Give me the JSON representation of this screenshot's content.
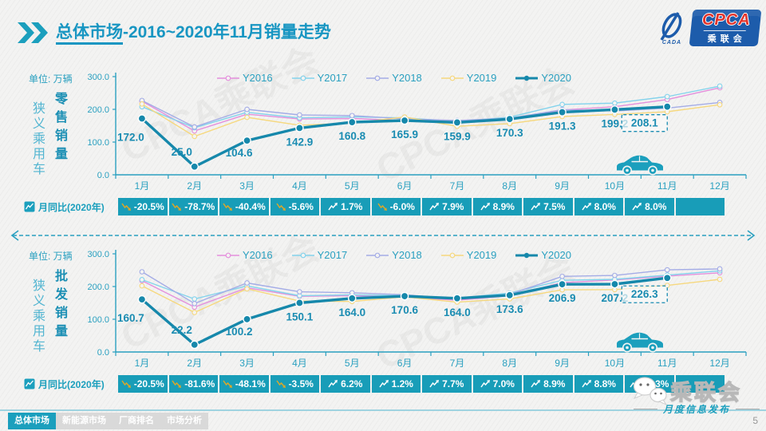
{
  "header": {
    "title_strong": "总体市场",
    "title_rest": "-2016~2020年11月销量走势",
    "logo": {
      "org_abbr": "CPCA",
      "org_cn": "乘联会",
      "swoosh_text": "CADA"
    }
  },
  "watermark_text": "CPCA乘联会",
  "charts": [
    {
      "unit_label": "单位: 万辆",
      "category_label": "狭义乘用车",
      "metric_label": "零售销量",
      "yoy_label": "月同比(2020年)"
    },
    {
      "unit_label": "单位: 万辆",
      "category_label": "狭义乘用车",
      "metric_label": "批发销量",
      "yoy_label": "月同比(2020年)"
    }
  ],
  "chart_data": [
    {
      "type": "line",
      "title": "狭义乘用车零售销量",
      "unit": "万辆",
      "categories": [
        "1月",
        "2月",
        "3月",
        "4月",
        "5月",
        "6月",
        "7月",
        "8月",
        "9月",
        "10月",
        "11月",
        "12月"
      ],
      "ylim": [
        0,
        300
      ],
      "yticks": [
        "300.0",
        "200.0",
        "100.0",
        "0.0"
      ],
      "legend_position": "top",
      "series": [
        {
          "name": "Y2016",
          "color": "#e490dc",
          "values": [
            225,
            134,
            185,
            170.5,
            172,
            166,
            158,
            170,
            198,
            208,
            230,
            266
          ]
        },
        {
          "name": "Y2017",
          "color": "#84d3ec",
          "values": [
            208,
            144,
            191,
            174,
            177,
            174,
            163,
            176,
            215,
            219,
            239,
            271
          ]
        },
        {
          "name": "Y2018",
          "color": "#a4ace6",
          "values": [
            227,
            146,
            200,
            183,
            181,
            171,
            166,
            173,
            199,
            195,
            204,
            221
          ]
        },
        {
          "name": "Y2019",
          "color": "#f6d87e",
          "values": [
            216.4,
            117.4,
            175.5,
            151.4,
            158.1,
            176.5,
            148.2,
            156.4,
            178,
            184.4,
            192.7,
            214.1
          ]
        },
        {
          "name": "Y2020",
          "color": "#1688ab",
          "emphasis": true,
          "values": [
            172,
            25,
            104.6,
            142.9,
            160.8,
            165.9,
            159.9,
            170.3,
            191.3,
            199.2,
            208.1,
            null
          ],
          "labels": [
            "172.0",
            "25.0",
            "104.6",
            "142.9",
            "160.8",
            "165.9",
            "159.9",
            "170.3",
            "191.3",
            "199.2",
            "208.1"
          ]
        }
      ],
      "boxed_label_index": 10,
      "yoy_row": {
        "label": "月同比(2020年)",
        "cells": [
          {
            "text": "-20.5%",
            "trend": "down"
          },
          {
            "text": "-78.7%",
            "trend": "down"
          },
          {
            "text": "-40.4%",
            "trend": "down"
          },
          {
            "text": "-5.6%",
            "trend": "down"
          },
          {
            "text": "1.7%",
            "trend": "up"
          },
          {
            "text": "-6.0%",
            "trend": "down"
          },
          {
            "text": "7.9%",
            "trend": "up"
          },
          {
            "text": "8.9%",
            "trend": "up"
          },
          {
            "text": "7.5%",
            "trend": "up"
          },
          {
            "text": "8.0%",
            "trend": "up"
          },
          {
            "text": "8.0%",
            "trend": "up"
          },
          {
            "text": "",
            "trend": ""
          }
        ]
      }
    },
    {
      "type": "line",
      "title": "狭义乘用车批发销量",
      "unit": "万辆",
      "categories": [
        "1月",
        "2月",
        "3月",
        "4月",
        "5月",
        "6月",
        "7月",
        "8月",
        "9月",
        "10月",
        "11月",
        "12月"
      ],
      "ylim": [
        0,
        300
      ],
      "yticks": [
        "300.0",
        "200.0",
        "100.0",
        "0.0"
      ],
      "legend_position": "top",
      "series": [
        {
          "name": "Y2016",
          "color": "#e490dc",
          "values": [
            218,
            137,
            196,
            170,
            172,
            168,
            158,
            172,
            212,
            220,
            232,
            242
          ]
        },
        {
          "name": "Y2017",
          "color": "#84d3ec",
          "values": [
            221,
            162,
            202,
            172,
            175,
            172,
            165,
            180,
            219,
            222,
            235,
            248
          ]
        },
        {
          "name": "Y2018",
          "color": "#a4ace6",
          "values": [
            245,
            148,
            211,
            184,
            181,
            175,
            162,
            176,
            231,
            234,
            251,
            254
          ]
        },
        {
          "name": "Y2019",
          "color": "#f6d87e",
          "values": [
            202.1,
            120.7,
            193.1,
            155.5,
            154.4,
            168.6,
            152.3,
            162.2,
            190,
            190.4,
            203.3,
            221.9
          ]
        },
        {
          "name": "Y2020",
          "color": "#1688ab",
          "emphasis": true,
          "values": [
            160.7,
            22.2,
            100.2,
            150.1,
            164,
            170.6,
            164,
            173.6,
            206.9,
            207.2,
            226.3,
            null
          ],
          "labels": [
            "160.7",
            "22.2",
            "100.2",
            "150.1",
            "164.0",
            "170.6",
            "164.0",
            "173.6",
            "206.9",
            "207.2",
            "226.3"
          ]
        }
      ],
      "boxed_label_index": 10,
      "yoy_row": {
        "label": "月同比(2020年)",
        "cells": [
          {
            "text": "-20.5%",
            "trend": "down"
          },
          {
            "text": "-81.6%",
            "trend": "down"
          },
          {
            "text": "-48.1%",
            "trend": "down"
          },
          {
            "text": "-3.5%",
            "trend": "down"
          },
          {
            "text": "6.2%",
            "trend": "up"
          },
          {
            "text": "1.2%",
            "trend": "up"
          },
          {
            "text": "7.7%",
            "trend": "up"
          },
          {
            "text": "7.0%",
            "trend": "up"
          },
          {
            "text": "8.9%",
            "trend": "up"
          },
          {
            "text": "8.8%",
            "trend": "up"
          },
          {
            "text": "11.3%",
            "trend": "up"
          },
          {
            "text": "",
            "trend": ""
          }
        ]
      }
    }
  ],
  "footer": {
    "tabs": [
      {
        "label": "总体市场",
        "active": true
      },
      {
        "label": "新能源市场",
        "active": false
      },
      {
        "label": "厂商排名",
        "active": false
      },
      {
        "label": "市场分析",
        "active": false
      }
    ],
    "wechat_name": "乘联会",
    "wechat_slogan": "月度信息发布",
    "page_number": "5"
  },
  "colors": {
    "accent": "#1b9fbd",
    "title": "#1896c2",
    "axis": "#2aa0c0",
    "ribbon_bg": "#189db8",
    "value_label": "#1a8cb2",
    "down_icon": "#dca728",
    "logo_blue": "#1d5cab",
    "logo_red": "#e2342c",
    "tab_inactive": "#d9d9d9"
  }
}
